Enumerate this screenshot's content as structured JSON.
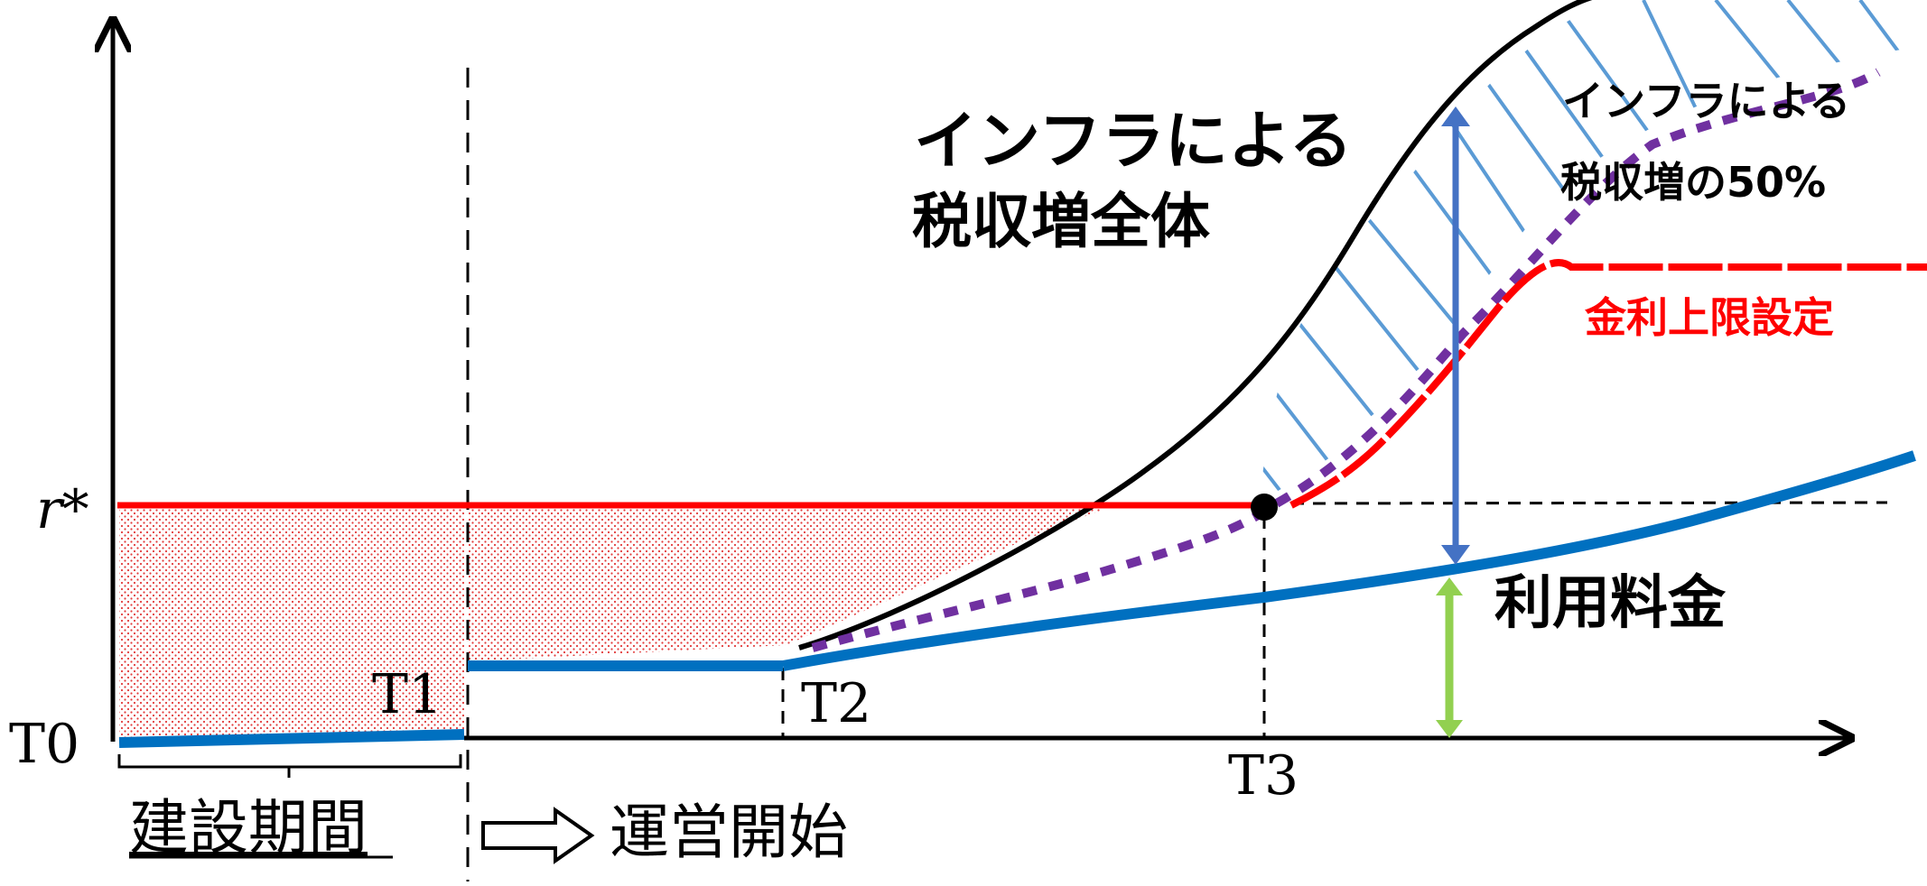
{
  "labels": {
    "r_star": "r*",
    "t0": "T0",
    "t1": "T1",
    "t2": "T2",
    "t3": "T3",
    "construction_period": "建設期間",
    "operation_start": "運営開始",
    "total_tax_increase_line1": "インフラによる",
    "total_tax_increase_line2": "税収増全体",
    "half_tax_increase_line1": "インフラによる",
    "half_tax_increase_line2": "税収増の50%",
    "interest_cap": "金利上限設定",
    "usage_fee": "利用料金"
  },
  "colors": {
    "axis": "#000000",
    "interest_line": "#ff0000",
    "usage_fee_line": "#0070c0",
    "half_line": "#7030a0",
    "hatch": "#5b9bd5",
    "double_arrow_blue": "#4472c4",
    "double_arrow_green": "#92d050",
    "dot_fill": "#f4b8b8"
  }
}
